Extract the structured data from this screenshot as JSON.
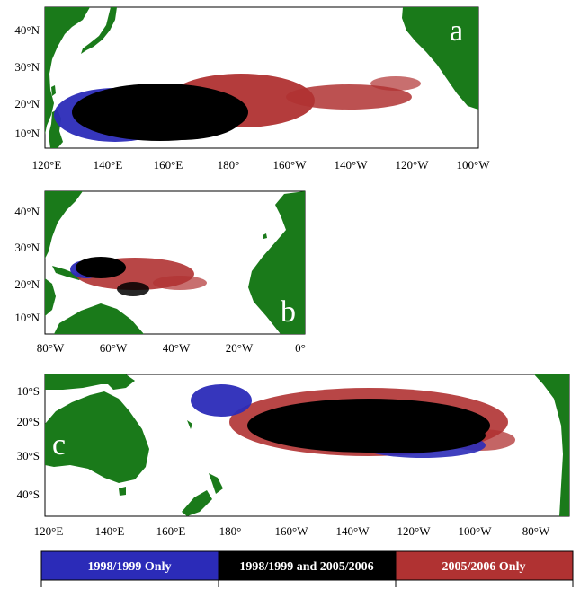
{
  "chart_data": [
    {
      "type": "heatmap",
      "panel": "a",
      "x_ticks": [
        "120°E",
        "140°E",
        "160°E",
        "180°",
        "160°W",
        "140°W",
        "120°W",
        "100°W"
      ],
      "y_ticks": [
        "10°N",
        "20°N",
        "30°N",
        "40°N"
      ],
      "x_tick_values": [
        120,
        140,
        160,
        180,
        200,
        220,
        240,
        260
      ],
      "y_tick_values": [
        10,
        20,
        30,
        40
      ],
      "xlim": [
        120,
        262
      ],
      "ylim": [
        5,
        47
      ]
    },
    {
      "type": "heatmap",
      "panel": "b",
      "x_ticks": [
        "80°W",
        "60°W",
        "40°W",
        "20°W",
        "0°"
      ],
      "y_ticks": [
        "10°N",
        "20°N",
        "30°N",
        "40°N"
      ],
      "x_tick_values": [
        -80,
        -60,
        -40,
        -20,
        0
      ],
      "y_tick_values": [
        10,
        20,
        30,
        40
      ],
      "xlim": [
        -82,
        0
      ],
      "ylim": [
        5,
        47
      ]
    },
    {
      "type": "heatmap",
      "panel": "c",
      "x_ticks": [
        "120°E",
        "140°E",
        "160°E",
        "180°",
        "160°W",
        "140°W",
        "120°W",
        "100°W",
        "80°W"
      ],
      "y_ticks": [
        "10°S",
        "20°S",
        "30°S",
        "40°S"
      ],
      "x_tick_values": [
        120,
        140,
        160,
        180,
        200,
        220,
        240,
        260,
        280
      ],
      "y_tick_values": [
        -10,
        -20,
        -30,
        -40
      ],
      "xlim": [
        120,
        291
      ],
      "ylim": [
        -47,
        -5
      ]
    }
  ],
  "legend": [
    {
      "label": "1998/1999 Only",
      "color": "#2b2bb8",
      "text_color": "#ffffff"
    },
    {
      "label": "1998/1999 and 2005/2006",
      "color": "#000000",
      "text_color": "#ffffff"
    },
    {
      "label": "2005/2006 Only",
      "color": "#b03232",
      "text_color": "#ffffff"
    }
  ],
  "colors": {
    "land": "#1a7a1a",
    "ocean": "#ffffff",
    "blue": "#2b2bb8",
    "black": "#000000",
    "red": "#b03232"
  }
}
